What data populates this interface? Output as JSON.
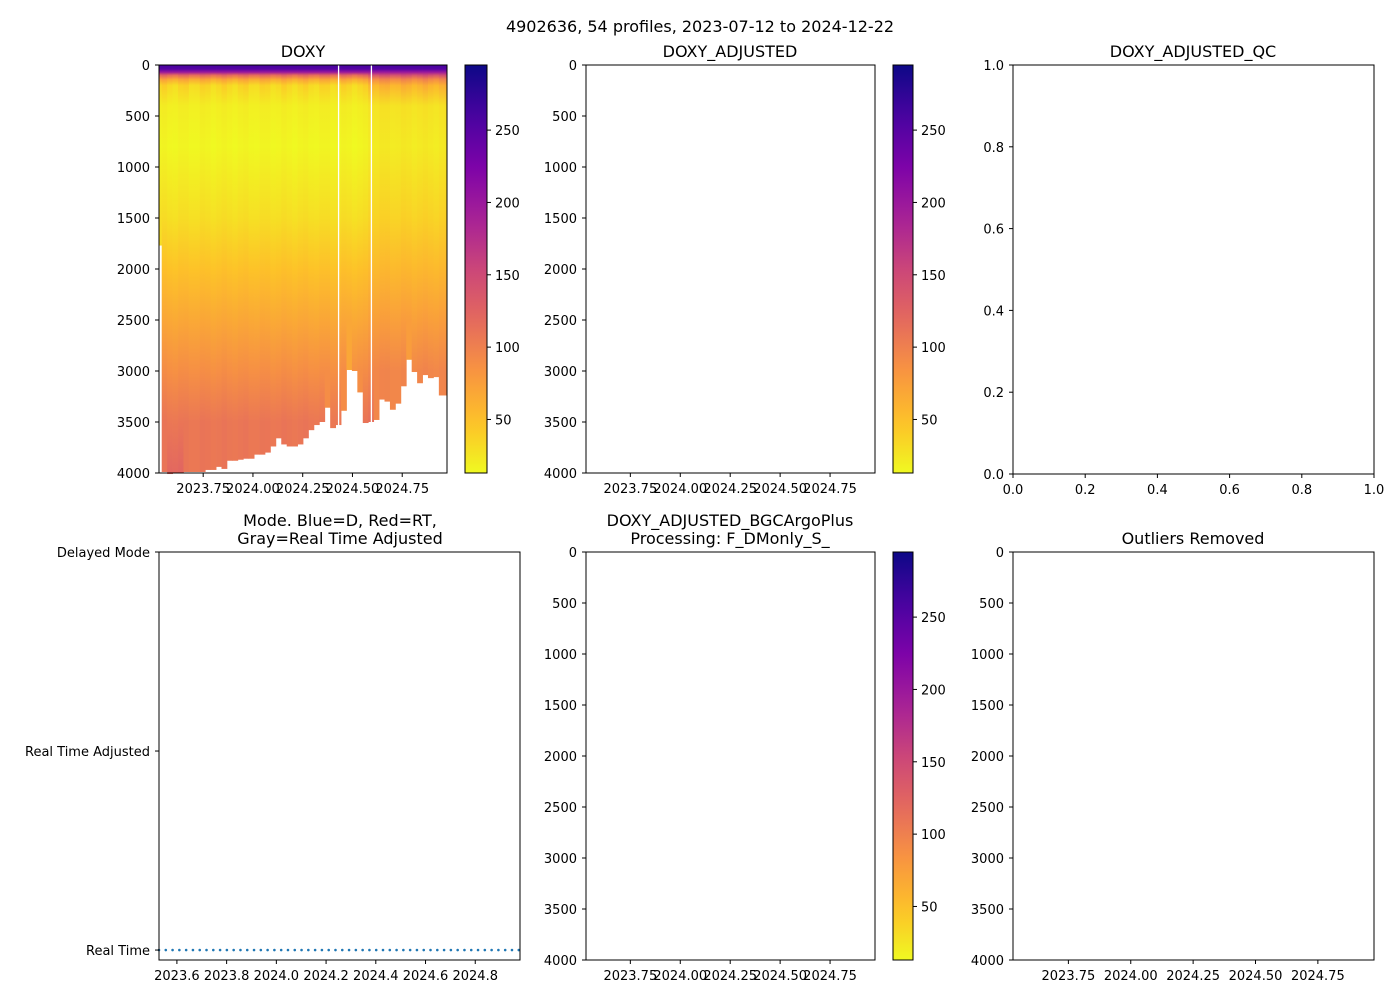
{
  "figure_title": "4902636, 54 profiles, 2023-07-12 to 2024-12-22",
  "colors": {
    "mode_dots": "#1f77b4",
    "colormap": "plasma_r"
  },
  "chart_data": [
    {
      "id": "doxy",
      "type": "heatmap",
      "title": [
        "DOXY"
      ],
      "xlim": [
        2023.528,
        2024.975
      ],
      "ylim": [
        4000,
        0
      ],
      "xticks": [
        2023.75,
        2024.0,
        2024.25,
        2024.5,
        2024.75
      ],
      "xtick_labels": [
        "2023.75",
        "2024.00",
        "2024.25",
        "2024.50",
        "2024.75"
      ],
      "yticks": [
        0,
        500,
        1000,
        1500,
        2000,
        2500,
        3000,
        3500,
        4000
      ],
      "ytick_labels": [
        "0",
        "500",
        "1000",
        "1500",
        "2000",
        "2500",
        "3000",
        "3500",
        "4000"
      ],
      "colorbar": {
        "vmin": 13,
        "vmax": 295,
        "ticks": [
          50,
          100,
          150,
          200,
          250
        ],
        "tick_labels": [
          "50",
          "100",
          "150",
          "200",
          "250"
        ]
      },
      "n_profiles": 54,
      "max_pressure": [
        1770,
        3990,
        4010,
        4000,
        4000,
        3990,
        3990,
        3990,
        3990,
        3970,
        3970,
        3940,
        3960,
        3880,
        3880,
        3870,
        3860,
        3860,
        3820,
        3820,
        3800,
        3740,
        3660,
        3720,
        3740,
        3740,
        3720,
        3660,
        3580,
        3530,
        3500,
        3360,
        3560,
        3530,
        3390,
        2990,
        3000,
        3210,
        3510,
        3500,
        3480,
        3280,
        3300,
        3380,
        3320,
        3150,
        2890,
        3010,
        3120,
        3040,
        3070,
        3060,
        3240,
        3240
      ],
      "gap_times": [
        2024.43,
        2024.595
      ],
      "typical_profile": {
        "pressure": [
          0,
          40,
          70,
          100,
          140,
          200,
          400,
          800,
          1500,
          2000,
          2500,
          3000,
          3500,
          4000
        ],
        "value": [
          262,
          250,
          200,
          120,
          70,
          35,
          20,
          15,
          30,
          48,
          68,
          88,
          108,
          122
        ]
      }
    },
    {
      "id": "doxy_adjusted",
      "type": "heatmap",
      "title": [
        "DOXY_ADJUSTED"
      ],
      "xlim": [
        2023.528,
        2024.975
      ],
      "ylim": [
        4000,
        0
      ],
      "xticks": [
        2023.75,
        2024.0,
        2024.25,
        2024.5,
        2024.75
      ],
      "xtick_labels": [
        "2023.75",
        "2024.00",
        "2024.25",
        "2024.50",
        "2024.75"
      ],
      "yticks": [
        0,
        500,
        1000,
        1500,
        2000,
        2500,
        3000,
        3500,
        4000
      ],
      "ytick_labels": [
        "0",
        "500",
        "1000",
        "1500",
        "2000",
        "2500",
        "3000",
        "3500",
        "4000"
      ],
      "colorbar": {
        "vmin": 13,
        "vmax": 295,
        "ticks": [
          50,
          100,
          150,
          200,
          250
        ],
        "tick_labels": [
          "50",
          "100",
          "150",
          "200",
          "250"
        ]
      }
    },
    {
      "id": "doxy_adjusted_qc",
      "type": "scatter",
      "title": [
        "DOXY_ADJUSTED_QC"
      ],
      "xlim": [
        0,
        1
      ],
      "ylim": [
        0,
        1
      ],
      "xticks": [
        0,
        0.2,
        0.4,
        0.6,
        0.8,
        1.0
      ],
      "xtick_labels": [
        "0.0",
        "0.2",
        "0.4",
        "0.6",
        "0.8",
        "1.0"
      ],
      "yticks": [
        0,
        0.2,
        0.4,
        0.6,
        0.8,
        1.0
      ],
      "ytick_labels": [
        "0.0",
        "0.2",
        "0.4",
        "0.6",
        "0.8",
        "1.0"
      ]
    },
    {
      "id": "mode",
      "type": "scatter",
      "title": [
        "Mode. Blue=D, Red=RT,",
        "Gray=Real Time Adjusted"
      ],
      "xlim": [
        2023.528,
        2024.98
      ],
      "ylim": [
        -0.05,
        2
      ],
      "xticks": [
        2023.6,
        2023.8,
        2024.0,
        2024.2,
        2024.4,
        2024.6,
        2024.8
      ],
      "xtick_labels": [
        "2023.6",
        "2023.8",
        "2024.0",
        "2024.2",
        "2024.4",
        "2024.6",
        "2024.8"
      ],
      "yticks": [
        0,
        1,
        2
      ],
      "ytick_labels": [
        "Real Time",
        "Real Time Adjusted",
        "Delayed Mode"
      ],
      "points": {
        "n": 54,
        "x_start": 2023.528,
        "x_end": 2024.975,
        "y": 0
      }
    },
    {
      "id": "bgcargoplus",
      "type": "heatmap",
      "title": [
        "DOXY_ADJUSTED_BGCArgoPlus",
        "Processing: F_DMonly_S_"
      ],
      "xlim": [
        2023.528,
        2024.975
      ],
      "ylim": [
        4000,
        0
      ],
      "xticks": [
        2023.75,
        2024.0,
        2024.25,
        2024.5,
        2024.75
      ],
      "xtick_labels": [
        "2023.75",
        "2024.00",
        "2024.25",
        "2024.50",
        "2024.75"
      ],
      "yticks": [
        0,
        500,
        1000,
        1500,
        2000,
        2500,
        3000,
        3500,
        4000
      ],
      "ytick_labels": [
        "0",
        "500",
        "1000",
        "1500",
        "2000",
        "2500",
        "3000",
        "3500",
        "4000"
      ],
      "colorbar": {
        "vmin": 13,
        "vmax": 295,
        "ticks": [
          50,
          100,
          150,
          200,
          250
        ],
        "tick_labels": [
          "50",
          "100",
          "150",
          "200",
          "250"
        ]
      }
    },
    {
      "id": "outliers",
      "type": "heatmap",
      "title": [
        "Outliers Removed"
      ],
      "xlim": [
        2023.528,
        2024.975
      ],
      "ylim": [
        4000,
        0
      ],
      "xticks": [
        2023.75,
        2024.0,
        2024.25,
        2024.5,
        2024.75
      ],
      "xtick_labels": [
        "2023.75",
        "2024.00",
        "2024.25",
        "2024.50",
        "2024.75"
      ],
      "yticks": [
        0,
        500,
        1000,
        1500,
        2000,
        2500,
        3000,
        3500,
        4000
      ],
      "ytick_labels": [
        "0",
        "500",
        "1000",
        "1500",
        "2000",
        "2500",
        "3000",
        "3500",
        "4000"
      ]
    }
  ]
}
